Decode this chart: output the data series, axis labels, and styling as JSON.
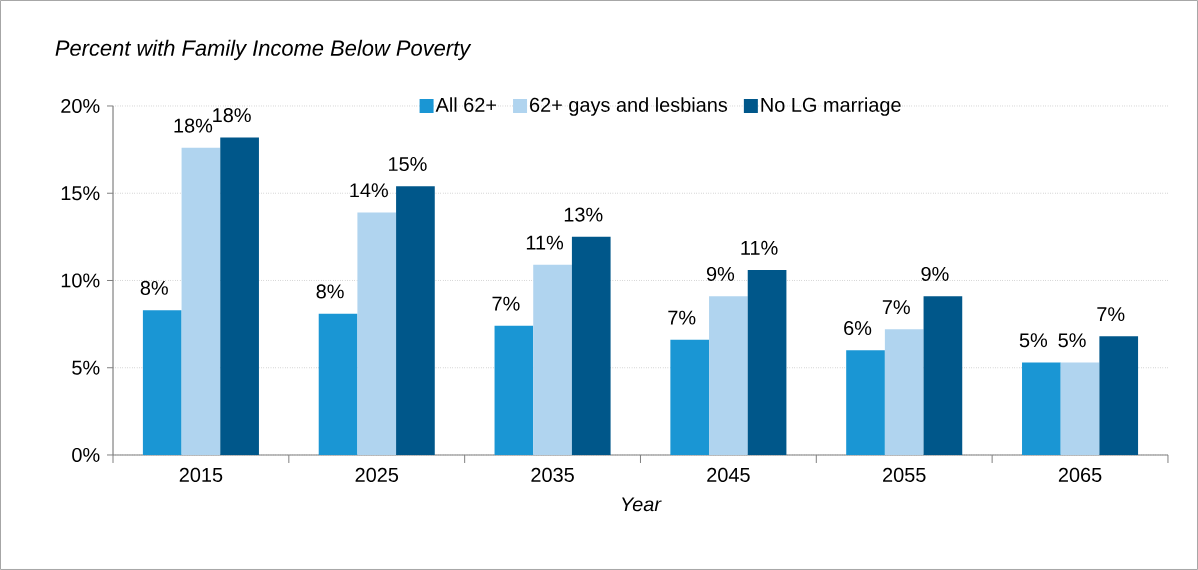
{
  "chart_data": {
    "type": "bar",
    "title": "Percent with Family Income Below Poverty",
    "xlabel": "Year",
    "categories": [
      "2015",
      "2025",
      "2035",
      "2045",
      "2055",
      "2065"
    ],
    "series": [
      {
        "name": "All 62+",
        "color": "#1a96d4",
        "values": [
          8.3,
          8.1,
          7.4,
          6.6,
          6.0,
          5.3
        ],
        "value_labels": [
          "8%",
          "8%",
          "7%",
          "7%",
          "6%",
          "5%"
        ]
      },
      {
        "name": "62+ gays and lesbians",
        "color": "#b0d4ef",
        "values": [
          17.6,
          13.9,
          10.9,
          9.1,
          7.2,
          5.3
        ],
        "value_labels": [
          "18%",
          "14%",
          "11%",
          "9%",
          "7%",
          "5%"
        ]
      },
      {
        "name": "No LG marriage",
        "color": "#00578a",
        "values": [
          18.2,
          15.4,
          12.5,
          10.6,
          9.1,
          6.8
        ],
        "value_labels": [
          "18%",
          "15%",
          "13%",
          "11%",
          "9%",
          "7%"
        ]
      }
    ],
    "ylim": [
      0,
      20
    ],
    "yticks": [
      {
        "value": 0,
        "label": "0%"
      },
      {
        "value": 5,
        "label": "5%"
      },
      {
        "value": 10,
        "label": "10%"
      },
      {
        "value": 15,
        "label": "15%"
      },
      {
        "value": 20,
        "label": "20%"
      }
    ],
    "grid": "y",
    "legend": "top"
  }
}
